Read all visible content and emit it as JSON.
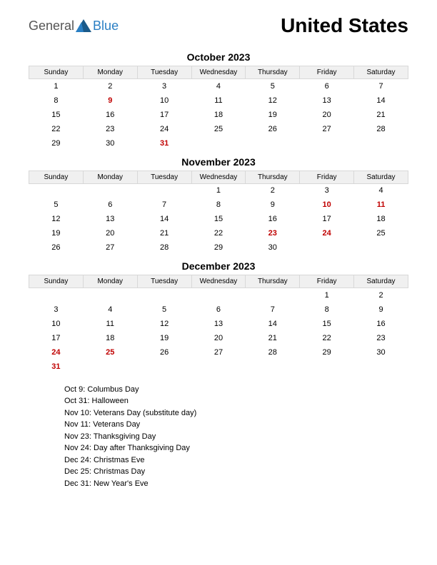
{
  "logo": {
    "general": "General",
    "blue": "Blue"
  },
  "title": "United States",
  "day_headers": [
    "Sunday",
    "Monday",
    "Tuesday",
    "Wednesday",
    "Thursday",
    "Friday",
    "Saturday"
  ],
  "colors": {
    "background": "#ffffff",
    "text": "#000000",
    "holiday": "#c00000",
    "header_bg": "#f0f0f0",
    "header_border": "#d8d8d8",
    "logo_gray": "#555555",
    "logo_blue": "#2a7fc4",
    "logo_icon": "#1a5a8a"
  },
  "fonts": {
    "title_size": 28,
    "title_weight": 700,
    "month_size": 14,
    "month_weight": 700,
    "day_header_size": 10,
    "cell_size": 11,
    "holiday_list_size": 11,
    "logo_size": 18
  },
  "months": [
    {
      "title": "October 2023",
      "weeks": [
        [
          {
            "d": "1"
          },
          {
            "d": "2"
          },
          {
            "d": "3"
          },
          {
            "d": "4"
          },
          {
            "d": "5"
          },
          {
            "d": "6"
          },
          {
            "d": "7"
          }
        ],
        [
          {
            "d": "8"
          },
          {
            "d": "9",
            "h": true
          },
          {
            "d": "10"
          },
          {
            "d": "11"
          },
          {
            "d": "12"
          },
          {
            "d": "13"
          },
          {
            "d": "14"
          }
        ],
        [
          {
            "d": "15"
          },
          {
            "d": "16"
          },
          {
            "d": "17"
          },
          {
            "d": "18"
          },
          {
            "d": "19"
          },
          {
            "d": "20"
          },
          {
            "d": "21"
          }
        ],
        [
          {
            "d": "22"
          },
          {
            "d": "23"
          },
          {
            "d": "24"
          },
          {
            "d": "25"
          },
          {
            "d": "26"
          },
          {
            "d": "27"
          },
          {
            "d": "28"
          }
        ],
        [
          {
            "d": "29"
          },
          {
            "d": "30"
          },
          {
            "d": "31",
            "h": true
          },
          {
            "d": ""
          },
          {
            "d": ""
          },
          {
            "d": ""
          },
          {
            "d": ""
          }
        ]
      ]
    },
    {
      "title": "November 2023",
      "weeks": [
        [
          {
            "d": ""
          },
          {
            "d": ""
          },
          {
            "d": ""
          },
          {
            "d": "1"
          },
          {
            "d": "2"
          },
          {
            "d": "3"
          },
          {
            "d": "4"
          }
        ],
        [
          {
            "d": "5"
          },
          {
            "d": "6"
          },
          {
            "d": "7"
          },
          {
            "d": "8"
          },
          {
            "d": "9"
          },
          {
            "d": "10",
            "h": true
          },
          {
            "d": "11",
            "h": true
          }
        ],
        [
          {
            "d": "12"
          },
          {
            "d": "13"
          },
          {
            "d": "14"
          },
          {
            "d": "15"
          },
          {
            "d": "16"
          },
          {
            "d": "17"
          },
          {
            "d": "18"
          }
        ],
        [
          {
            "d": "19"
          },
          {
            "d": "20"
          },
          {
            "d": "21"
          },
          {
            "d": "22"
          },
          {
            "d": "23",
            "h": true
          },
          {
            "d": "24",
            "h": true
          },
          {
            "d": "25"
          }
        ],
        [
          {
            "d": "26"
          },
          {
            "d": "27"
          },
          {
            "d": "28"
          },
          {
            "d": "29"
          },
          {
            "d": "30"
          },
          {
            "d": ""
          },
          {
            "d": ""
          }
        ]
      ]
    },
    {
      "title": "December 2023",
      "weeks": [
        [
          {
            "d": ""
          },
          {
            "d": ""
          },
          {
            "d": ""
          },
          {
            "d": ""
          },
          {
            "d": ""
          },
          {
            "d": "1"
          },
          {
            "d": "2"
          }
        ],
        [
          {
            "d": "3"
          },
          {
            "d": "4"
          },
          {
            "d": "5"
          },
          {
            "d": "6"
          },
          {
            "d": "7"
          },
          {
            "d": "8"
          },
          {
            "d": "9"
          }
        ],
        [
          {
            "d": "10"
          },
          {
            "d": "11"
          },
          {
            "d": "12"
          },
          {
            "d": "13"
          },
          {
            "d": "14"
          },
          {
            "d": "15"
          },
          {
            "d": "16"
          }
        ],
        [
          {
            "d": "17"
          },
          {
            "d": "18"
          },
          {
            "d": "19"
          },
          {
            "d": "20"
          },
          {
            "d": "21"
          },
          {
            "d": "22"
          },
          {
            "d": "23"
          }
        ],
        [
          {
            "d": "24",
            "h": true
          },
          {
            "d": "25",
            "h": true
          },
          {
            "d": "26"
          },
          {
            "d": "27"
          },
          {
            "d": "28"
          },
          {
            "d": "29"
          },
          {
            "d": "30"
          }
        ],
        [
          {
            "d": "31",
            "h": true
          },
          {
            "d": ""
          },
          {
            "d": ""
          },
          {
            "d": ""
          },
          {
            "d": ""
          },
          {
            "d": ""
          },
          {
            "d": ""
          }
        ]
      ]
    }
  ],
  "holidays": [
    "Oct 9: Columbus Day",
    "Oct 31: Halloween",
    "Nov 10: Veterans Day (substitute day)",
    "Nov 11: Veterans Day",
    "Nov 23: Thanksgiving Day",
    "Nov 24: Day after Thanksgiving Day",
    "Dec 24: Christmas Eve",
    "Dec 25: Christmas Day",
    "Dec 31: New Year's Eve"
  ]
}
